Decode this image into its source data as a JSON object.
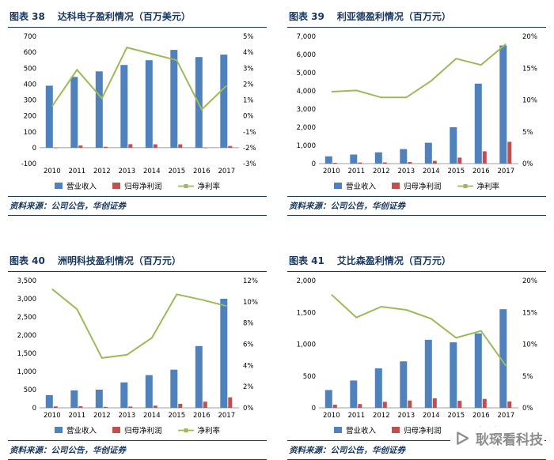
{
  "watermark": {
    "text": "耿琛看科技",
    "icon": "play-triangle-icon",
    "color": "#8c8c8c"
  },
  "chart_data": [
    {
      "type": "bar",
      "figure_label": "图表 38",
      "title": "达科电子盈利情况（百万美元）",
      "categories": [
        "2010",
        "2011",
        "2012",
        "2013",
        "2014",
        "2015",
        "2016",
        "2017"
      ],
      "series": [
        {
          "name": "营业收入",
          "type": "bar",
          "axis": "left",
          "color": "#4F81BD",
          "values": [
            390,
            445,
            480,
            520,
            550,
            615,
            570,
            585
          ]
        },
        {
          "name": "归母净利润",
          "type": "bar",
          "axis": "left",
          "color": "#C0504D",
          "values": [
            2,
            14,
            6,
            22,
            21,
            21,
            2,
            11
          ]
        },
        {
          "name": "净利率",
          "type": "line",
          "axis": "right",
          "color": "#9BBB59",
          "values": [
            0.6,
            2.9,
            1.1,
            4.3,
            3.9,
            3.5,
            0.4,
            1.9
          ]
        }
      ],
      "left_axis": {
        "min": -100,
        "max": 700,
        "step": 100,
        "format": "int"
      },
      "right_axis": {
        "min": -3,
        "max": 5,
        "step": 1,
        "format": "percent"
      },
      "grid": false,
      "legend_position": "bottom",
      "source": "资料来源：公司公告，华创证券"
    },
    {
      "type": "bar",
      "figure_label": "图表 39",
      "title": "利亚德盈利情况（百万元）",
      "categories": [
        "2010",
        "2011",
        "2012",
        "2013",
        "2014",
        "2015",
        "2016",
        "2017"
      ],
      "series": [
        {
          "name": "营业收入",
          "type": "bar",
          "axis": "left",
          "color": "#4F81BD",
          "values": [
            400,
            500,
            620,
            800,
            1150,
            2000,
            4400,
            6500
          ]
        },
        {
          "name": "归母净利润",
          "type": "bar",
          "axis": "left",
          "color": "#C0504D",
          "values": [
            45,
            60,
            65,
            85,
            150,
            330,
            680,
            1200
          ]
        },
        {
          "name": "净利率",
          "type": "line",
          "axis": "right",
          "color": "#9BBB59",
          "values": [
            11.3,
            11.5,
            10.4,
            10.4,
            13.0,
            16.5,
            15.5,
            18.8
          ]
        }
      ],
      "left_axis": {
        "min": 0,
        "max": 7000,
        "step": 1000,
        "format": "int"
      },
      "right_axis": {
        "min": 0,
        "max": 20,
        "step": 5,
        "format": "percent"
      },
      "grid": false,
      "legend_position": "bottom",
      "source": "资料来源：公司公告，华创证券"
    },
    {
      "type": "bar",
      "figure_label": "图表 40",
      "title": "洲明科技盈利情况（百万元）",
      "categories": [
        "2010",
        "2011",
        "2012",
        "2013",
        "2014",
        "2015",
        "2016",
        "2017"
      ],
      "series": [
        {
          "name": "营业收入",
          "type": "bar",
          "axis": "left",
          "color": "#4F81BD",
          "values": [
            350,
            480,
            500,
            700,
            900,
            1050,
            1700,
            3000
          ]
        },
        {
          "name": "归母净利润",
          "type": "bar",
          "axis": "left",
          "color": "#C0504D",
          "values": [
            40,
            45,
            25,
            35,
            60,
            110,
            170,
            290
          ]
        },
        {
          "name": "净利率",
          "type": "line",
          "axis": "right",
          "color": "#9BBB59",
          "values": [
            11.2,
            9.3,
            4.7,
            5.0,
            6.6,
            10.7,
            10.2,
            9.6
          ]
        }
      ],
      "left_axis": {
        "min": 0,
        "max": 3500,
        "step": 500,
        "format": "int"
      },
      "right_axis": {
        "min": 0,
        "max": 12,
        "step": 2,
        "format": "percent"
      },
      "grid": false,
      "legend_position": "bottom",
      "source": "资料来源：公司公告，华创证券"
    },
    {
      "type": "bar",
      "figure_label": "图表 41",
      "title": "艾比森盈利情况（百万元）",
      "categories": [
        "2010",
        "2011",
        "2012",
        "2013",
        "2014",
        "2015",
        "2016",
        "2017"
      ],
      "series": [
        {
          "name": "营业收入",
          "type": "bar",
          "axis": "left",
          "color": "#4F81BD",
          "values": [
            280,
            430,
            620,
            730,
            1070,
            1030,
            1170,
            1550
          ]
        },
        {
          "name": "归母净利润",
          "type": "bar",
          "axis": "left",
          "color": "#C0504D",
          "values": [
            50,
            60,
            95,
            115,
            150,
            110,
            140,
            100
          ]
        },
        {
          "name": "净利率",
          "type": "line",
          "axis": "right",
          "color": "#9BBB59",
          "values": [
            17.8,
            14.2,
            15.9,
            15.4,
            14.0,
            11.0,
            12.1,
            6.6
          ]
        }
      ],
      "left_axis": {
        "min": 0,
        "max": 2000,
        "step": 500,
        "format": "int"
      },
      "right_axis": {
        "min": 0,
        "max": 20,
        "step": 5,
        "format": "percent"
      },
      "grid": false,
      "legend_position": "bottom",
      "source": "资料来源：公司公告，华创证券"
    }
  ]
}
